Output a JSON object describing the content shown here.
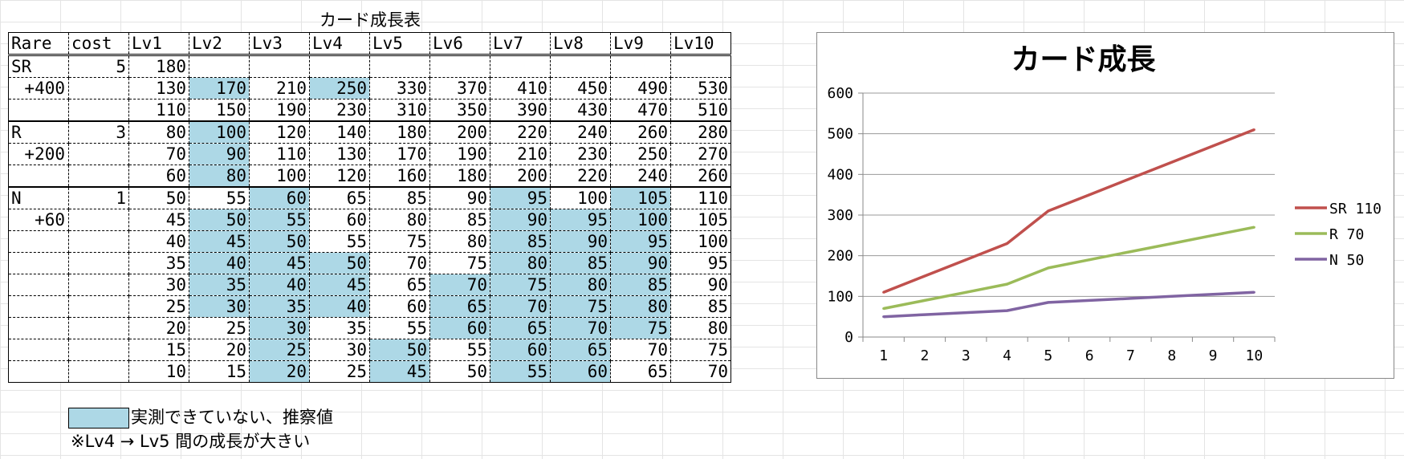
{
  "sheet": {
    "title": "カード成長表",
    "headers": [
      "Rare",
      "cost",
      "Lv1",
      "Lv2",
      "Lv3",
      "Lv4",
      "Lv5",
      "Lv6",
      "Lv7",
      "Lv8",
      "Lv9",
      "Lv10"
    ],
    "groups": [
      {
        "rare": "SR",
        "cost": "5",
        "increment": "+400",
        "rows": [
          {
            "values": [
              "180",
              "",
              "",
              "",
              "",
              "",
              "",
              "",
              "",
              ""
            ],
            "highlight": []
          },
          {
            "values": [
              "130",
              "170",
              "210",
              "250",
              "330",
              "370",
              "410",
              "450",
              "490",
              "530"
            ],
            "highlight": [
              1,
              3
            ]
          },
          {
            "values": [
              "110",
              "150",
              "190",
              "230",
              "310",
              "350",
              "390",
              "430",
              "470",
              "510"
            ],
            "highlight": []
          }
        ]
      },
      {
        "rare": "R",
        "cost": "3",
        "increment": "+200",
        "rows": [
          {
            "values": [
              "80",
              "100",
              "120",
              "140",
              "180",
              "200",
              "220",
              "240",
              "260",
              "280"
            ],
            "highlight": [
              1
            ]
          },
          {
            "values": [
              "70",
              "90",
              "110",
              "130",
              "170",
              "190",
              "210",
              "230",
              "250",
              "270"
            ],
            "highlight": [
              1
            ]
          },
          {
            "values": [
              "60",
              "80",
              "100",
              "120",
              "160",
              "180",
              "200",
              "220",
              "240",
              "260"
            ],
            "highlight": [
              1
            ]
          }
        ]
      },
      {
        "rare": "N",
        "cost": "1",
        "increment": "+60",
        "rows": [
          {
            "values": [
              "50",
              "55",
              "60",
              "65",
              "85",
              "90",
              "95",
              "100",
              "105",
              "110"
            ],
            "highlight": [
              2,
              6,
              8
            ]
          },
          {
            "values": [
              "45",
              "50",
              "55",
              "60",
              "80",
              "85",
              "90",
              "95",
              "100",
              "105"
            ],
            "highlight": [
              1,
              2,
              6,
              7,
              8
            ]
          },
          {
            "values": [
              "40",
              "45",
              "50",
              "55",
              "75",
              "80",
              "85",
              "90",
              "95",
              "100"
            ],
            "highlight": [
              1,
              2,
              6,
              7,
              8
            ]
          },
          {
            "values": [
              "35",
              "40",
              "45",
              "50",
              "70",
              "75",
              "80",
              "85",
              "90",
              "95"
            ],
            "highlight": [
              1,
              2,
              3,
              6,
              7,
              8
            ]
          },
          {
            "values": [
              "30",
              "35",
              "40",
              "45",
              "65",
              "70",
              "75",
              "80",
              "85",
              "90"
            ],
            "highlight": [
              1,
              2,
              3,
              5,
              6,
              7,
              8
            ]
          },
          {
            "values": [
              "25",
              "30",
              "35",
              "40",
              "60",
              "65",
              "70",
              "75",
              "80",
              "85"
            ],
            "highlight": [
              1,
              2,
              3,
              5,
              6,
              7,
              8
            ]
          },
          {
            "values": [
              "20",
              "25",
              "30",
              "35",
              "55",
              "60",
              "65",
              "70",
              "75",
              "80"
            ],
            "highlight": [
              2,
              5,
              6,
              7,
              8
            ]
          },
          {
            "values": [
              "15",
              "20",
              "25",
              "30",
              "50",
              "55",
              "60",
              "65",
              "70",
              "75"
            ],
            "highlight": [
              2,
              4,
              6,
              7
            ]
          },
          {
            "values": [
              "10",
              "15",
              "20",
              "25",
              "45",
              "50",
              "55",
              "60",
              "65",
              "70"
            ],
            "highlight": [
              2,
              4,
              6,
              7
            ]
          }
        ]
      }
    ],
    "highlight_color": "#add8e6"
  },
  "legend": {
    "estimated_label": "実測できていない、推察値",
    "note": "※Lv4 → Lv5 間の成長が大きい"
  },
  "chart_data": {
    "type": "line",
    "title": "カード成長",
    "x": [
      "1",
      "2",
      "3",
      "4",
      "5",
      "6",
      "7",
      "8",
      "9",
      "10"
    ],
    "ylim": [
      0,
      600
    ],
    "yticks": [
      "0",
      "100",
      "200",
      "300",
      "400",
      "500",
      "600"
    ],
    "grid": true,
    "legend_position": "right",
    "series": [
      {
        "name": "SR 110",
        "color": "#c0504d",
        "values": [
          110,
          150,
          190,
          230,
          310,
          350,
          390,
          430,
          470,
          510
        ]
      },
      {
        "name": "R 70",
        "color": "#9bbb59",
        "values": [
          70,
          90,
          110,
          130,
          170,
          190,
          210,
          230,
          250,
          270
        ]
      },
      {
        "name": "N 50",
        "color": "#8064a2",
        "values": [
          50,
          55,
          60,
          65,
          85,
          90,
          95,
          100,
          105,
          110
        ]
      }
    ]
  }
}
